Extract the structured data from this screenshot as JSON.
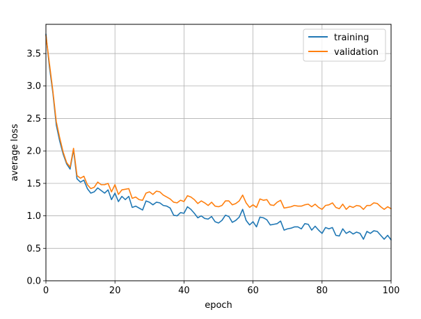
{
  "chart_data": {
    "type": "line",
    "xlabel": "epoch",
    "ylabel": "average loss",
    "xlim": [
      0,
      100
    ],
    "ylim": [
      0,
      3.95
    ],
    "xticks": [
      0,
      20,
      40,
      60,
      80,
      100
    ],
    "yticks": [
      0.0,
      0.5,
      1.0,
      1.5,
      2.0,
      2.5,
      3.0,
      3.5
    ],
    "xtick_labels": [
      "0",
      "20",
      "40",
      "60",
      "80",
      "100"
    ],
    "ytick_labels": [
      "0.0",
      "0.5",
      "1.0",
      "1.5",
      "2.0",
      "2.5",
      "3.0",
      "3.5"
    ],
    "grid": true,
    "legend_position": "top-right",
    "series": [
      {
        "name": "training",
        "color": "#1f77b4",
        "values": [
          3.8,
          3.3,
          2.9,
          2.4,
          2.15,
          1.95,
          1.8,
          1.72,
          2.02,
          1.57,
          1.52,
          1.55,
          1.42,
          1.35,
          1.37,
          1.43,
          1.39,
          1.35,
          1.4,
          1.25,
          1.35,
          1.22,
          1.3,
          1.25,
          1.3,
          1.13,
          1.15,
          1.12,
          1.09,
          1.23,
          1.21,
          1.17,
          1.21,
          1.2,
          1.16,
          1.15,
          1.12,
          1.01,
          1.0,
          1.05,
          1.04,
          1.14,
          1.1,
          1.04,
          0.97,
          1.0,
          0.96,
          0.95,
          0.99,
          0.91,
          0.89,
          0.93,
          1.01,
          0.99,
          0.9,
          0.93,
          0.98,
          1.1,
          0.93,
          0.86,
          0.91,
          0.83,
          0.98,
          0.97,
          0.94,
          0.86,
          0.87,
          0.88,
          0.92,
          0.78,
          0.8,
          0.81,
          0.83,
          0.83,
          0.8,
          0.88,
          0.87,
          0.78,
          0.84,
          0.78,
          0.73,
          0.82,
          0.8,
          0.82,
          0.7,
          0.69,
          0.8,
          0.73,
          0.76,
          0.72,
          0.75,
          0.73,
          0.64,
          0.76,
          0.73,
          0.77,
          0.76,
          0.7,
          0.64,
          0.7,
          0.63
        ]
      },
      {
        "name": "validation",
        "color": "#ff7f0e",
        "values": [
          3.78,
          3.35,
          2.93,
          2.45,
          2.2,
          1.98,
          1.82,
          1.75,
          2.04,
          1.62,
          1.58,
          1.61,
          1.48,
          1.42,
          1.44,
          1.52,
          1.48,
          1.48,
          1.5,
          1.37,
          1.48,
          1.33,
          1.4,
          1.41,
          1.42,
          1.27,
          1.29,
          1.25,
          1.24,
          1.35,
          1.37,
          1.33,
          1.38,
          1.37,
          1.32,
          1.29,
          1.26,
          1.21,
          1.2,
          1.24,
          1.22,
          1.31,
          1.29,
          1.25,
          1.19,
          1.23,
          1.2,
          1.16,
          1.21,
          1.15,
          1.14,
          1.16,
          1.23,
          1.23,
          1.17,
          1.19,
          1.23,
          1.32,
          1.2,
          1.13,
          1.17,
          1.13,
          1.26,
          1.24,
          1.25,
          1.17,
          1.16,
          1.21,
          1.24,
          1.12,
          1.13,
          1.14,
          1.16,
          1.15,
          1.15,
          1.17,
          1.18,
          1.14,
          1.18,
          1.13,
          1.1,
          1.16,
          1.17,
          1.2,
          1.13,
          1.11,
          1.18,
          1.1,
          1.15,
          1.13,
          1.16,
          1.15,
          1.1,
          1.16,
          1.16,
          1.2,
          1.19,
          1.14,
          1.1,
          1.14,
          1.11
        ]
      }
    ]
  }
}
